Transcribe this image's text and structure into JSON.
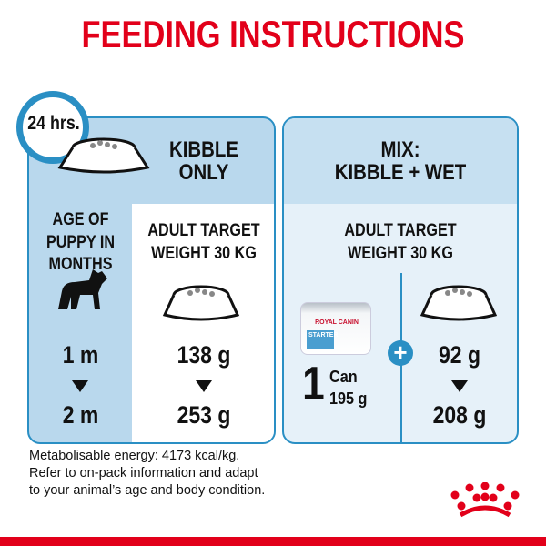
{
  "title": "FEEDING INSTRUCTIONS",
  "clock_label": "24 hrs.",
  "kibble_panel": {
    "title_line1": "KIBBLE",
    "title_line2": "ONLY",
    "age_line1": "AGE OF",
    "age_line2": "PUPPY IN",
    "age_line3": "MONTHS",
    "target_line1": "ADULT TARGET",
    "target_line2": "WEIGHT 30 KG",
    "ages": [
      "1 m",
      "2 m"
    ],
    "amounts": [
      "138 g",
      "253 g"
    ]
  },
  "mix_panel": {
    "title_line1": "MIX:",
    "title_line2": "KIBBLE + WET",
    "target_line1": "ADULT TARGET",
    "target_line2": "WEIGHT 30 KG",
    "can_count": "1",
    "can_label": "Can",
    "can_weight": "195 g",
    "can_brand": "ROYAL CANIN",
    "can_product": "STARTER",
    "plus": "+",
    "amounts": [
      "92 g",
      "208 g"
    ]
  },
  "footer": {
    "line1": "Metabolisable energy: 4173 kcal/kg.",
    "line2": "Refer to on-pack information and adapt",
    "line3": "to your animal’s age and body condition."
  },
  "colors": {
    "red": "#e2001a",
    "blue": "#2a8fc4",
    "panel_blue": "#b9d8ed",
    "light_blue": "#e6f1f9"
  },
  "icons": [
    "clock-icon",
    "kibble-bowl-icon",
    "puppy-silhouette-icon",
    "wet-food-can-image",
    "plus-icon",
    "royal-canin-crown-logo"
  ]
}
